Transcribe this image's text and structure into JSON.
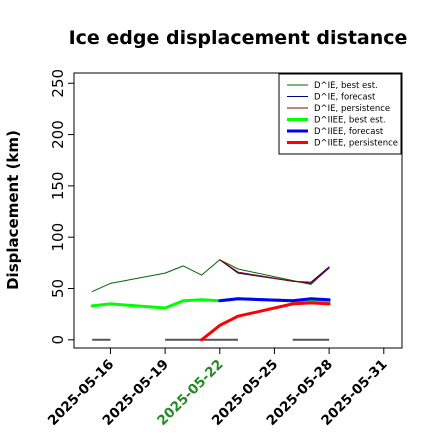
{
  "chart_data": {
    "type": "line",
    "title": "Ice edge displacement distance",
    "ylabel": "Displacement (km)",
    "xlabel": "",
    "ylim": [
      -8,
      260
    ],
    "yticks": [
      0,
      50,
      100,
      150,
      200,
      250
    ],
    "xlim": [
      "2025-05-14",
      "2025-06-01"
    ],
    "xticks": [
      "2025-05-16",
      "2025-05-19",
      "2025-05-22",
      "2025-05-25",
      "2025-05-28",
      "2025-05-31"
    ],
    "highlight_tick": "2025-05-22",
    "highlight_color": "#228B22",
    "legend_position": "top-right",
    "series": [
      {
        "name": "D^IE, best est.",
        "color": "#006400",
        "width": 1,
        "points": [
          [
            "2025-05-15",
            47
          ],
          [
            "2025-05-16",
            55
          ],
          [
            "2025-05-19",
            65
          ],
          [
            "2025-05-20",
            72
          ],
          [
            "2025-05-21",
            63
          ],
          [
            "2025-05-22",
            78
          ],
          [
            "2025-05-23",
            69
          ],
          [
            "2025-05-27",
            54
          ],
          [
            "2025-05-28",
            70
          ]
        ]
      },
      {
        "name": "D^IE, forecast",
        "color": "#00008B",
        "width": 1,
        "points": [
          [
            "2025-05-22",
            78
          ],
          [
            "2025-05-23",
            65
          ],
          [
            "2025-05-26",
            57
          ],
          [
            "2025-05-27",
            56
          ],
          [
            "2025-05-28",
            71
          ]
        ]
      },
      {
        "name": "D^IE, persistence",
        "color": "#8B0000",
        "width": 1,
        "points": [
          [
            "2025-05-22",
            78
          ],
          [
            "2025-05-23",
            66
          ],
          [
            "2025-05-26",
            57
          ],
          [
            "2025-05-27",
            55
          ],
          [
            "2025-05-28",
            70
          ]
        ]
      },
      {
        "name": "D^IIEE, best est.",
        "color": "#00FF00",
        "width": 3,
        "points": [
          [
            "2025-05-15",
            33
          ],
          [
            "2025-05-16",
            35
          ],
          [
            "2025-05-19",
            31
          ],
          [
            "2025-05-20",
            38
          ],
          [
            "2025-05-21",
            39
          ],
          [
            "2025-05-22",
            38
          ],
          [
            "2025-05-23",
            40
          ],
          [
            "2025-05-26",
            38
          ],
          [
            "2025-05-27",
            38
          ],
          [
            "2025-05-28",
            37
          ]
        ]
      },
      {
        "name": "D^IIEE, forecast",
        "color": "#0000FF",
        "width": 3,
        "points": [
          [
            "2025-05-22",
            38
          ],
          [
            "2025-05-23",
            40
          ],
          [
            "2025-05-26",
            38
          ],
          [
            "2025-05-27",
            40
          ],
          [
            "2025-05-28",
            39
          ]
        ]
      },
      {
        "name": "D^IIEE, persistence",
        "color": "#FF0000",
        "width": 3,
        "points": [
          [
            "2025-05-21",
            0
          ],
          [
            "2025-05-22",
            14
          ],
          [
            "2025-05-23",
            23
          ],
          [
            "2025-05-26",
            35
          ],
          [
            "2025-05-27",
            36
          ],
          [
            "2025-05-28",
            35
          ]
        ]
      }
    ],
    "zero_segments": {
      "color": "#555555",
      "segments": [
        [
          "2025-05-15",
          "2025-05-16"
        ],
        [
          "2025-05-19",
          "2025-05-23"
        ],
        [
          "2025-05-26",
          "2025-05-28"
        ]
      ]
    }
  }
}
